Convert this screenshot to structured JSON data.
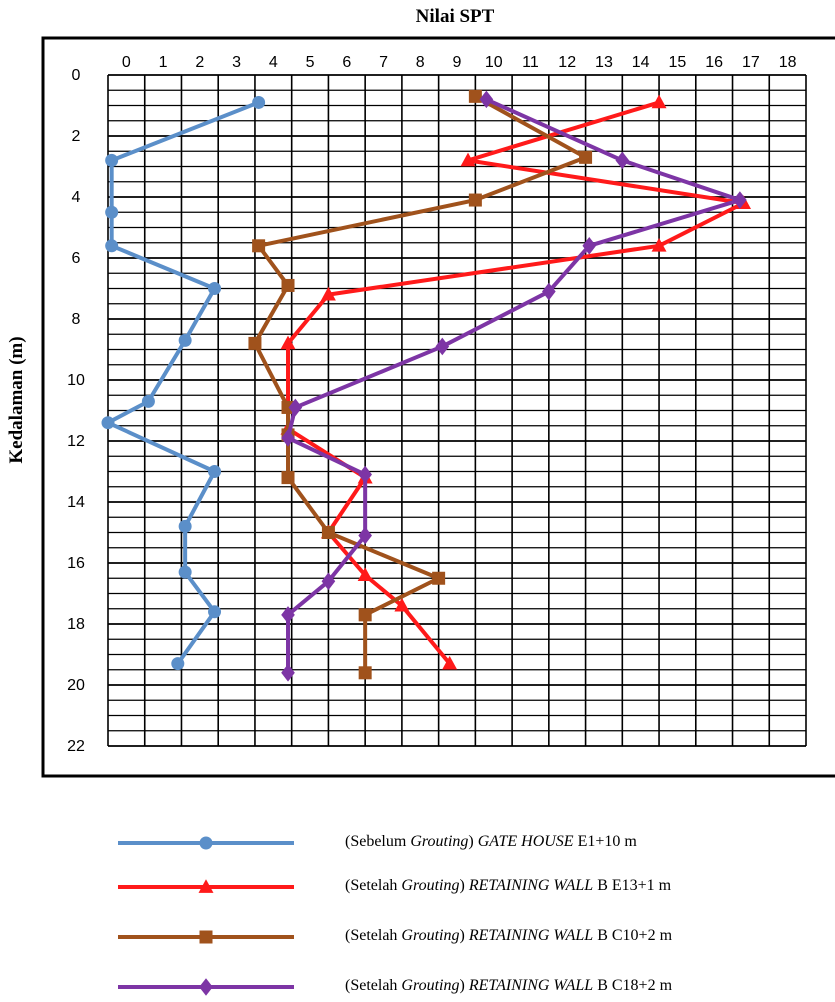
{
  "chart_data": {
    "type": "line",
    "title": "Nilai SPT",
    "xlabel": "",
    "ylabel": "Kedalaman (m)",
    "xlim": [
      0,
      19
    ],
    "ylim": [
      0,
      22
    ],
    "x_ticks": [
      0,
      1,
      2,
      3,
      4,
      5,
      6,
      7,
      8,
      9,
      10,
      11,
      12,
      13,
      14,
      15,
      16,
      17,
      18
    ],
    "y_ticks": [
      0,
      2,
      4,
      6,
      8,
      10,
      12,
      14,
      16,
      18,
      20,
      22
    ],
    "y_inverted": true,
    "x_axis_position": "top",
    "grid": true,
    "legend_position": "bottom",
    "series": [
      {
        "name": "(Sebelum Grouting) GATE HOUSE E1+10 m",
        "name_parts": [
          [
            "",
            "(Sebelum "
          ],
          [
            "it",
            "Grouting"
          ],
          [
            "",
            ") "
          ],
          [
            "it",
            "GATE HOUSE"
          ],
          [
            "",
            " E1+10 m"
          ]
        ],
        "color": "#5b8fc9",
        "marker": "circle",
        "points": [
          [
            4.1,
            0.9
          ],
          [
            0.1,
            2.8
          ],
          [
            0.1,
            4.5
          ],
          [
            0.1,
            5.6
          ],
          [
            2.9,
            7.0
          ],
          [
            2.1,
            8.7
          ],
          [
            1.1,
            10.7
          ],
          [
            0.0,
            11.4
          ],
          [
            2.9,
            13.0
          ],
          [
            2.1,
            14.8
          ],
          [
            2.1,
            16.3
          ],
          [
            2.9,
            17.6
          ],
          [
            1.9,
            19.3
          ]
        ]
      },
      {
        "name": "(Setelah Grouting) RETAINING WALL B E13+1 m",
        "name_parts": [
          [
            "",
            "(Setelah "
          ],
          [
            "it",
            "Grouting"
          ],
          [
            "",
            ") "
          ],
          [
            "it",
            "RETAINING WALL"
          ],
          [
            "",
            " B E13+1 m"
          ]
        ],
        "color": "#ff1a1a",
        "marker": "triangle",
        "points": [
          [
            15.0,
            0.9
          ],
          [
            9.8,
            2.8
          ],
          [
            17.3,
            4.2
          ],
          [
            15.0,
            5.6
          ],
          [
            6.0,
            7.2
          ],
          [
            4.9,
            8.8
          ],
          [
            4.9,
            11.6
          ],
          [
            7.0,
            13.2
          ],
          [
            6.0,
            15.0
          ],
          [
            7.0,
            16.4
          ],
          [
            8.0,
            17.4
          ],
          [
            9.3,
            19.3
          ]
        ]
      },
      {
        "name": "(Setelah Grouting) RETAINING WALL B C10+2 m",
        "name_parts": [
          [
            "",
            "(Setelah "
          ],
          [
            "it",
            "Grouting"
          ],
          [
            "",
            ") "
          ],
          [
            "it",
            "RETAINING WALL"
          ],
          [
            "",
            " B C10+2 m"
          ]
        ],
        "color": "#a0521c",
        "marker": "square",
        "points": [
          [
            10.0,
            0.7
          ],
          [
            13.0,
            2.7
          ],
          [
            10.0,
            4.1
          ],
          [
            4.1,
            5.6
          ],
          [
            4.9,
            6.9
          ],
          [
            4.0,
            8.8
          ],
          [
            4.9,
            10.9
          ],
          [
            4.9,
            11.8
          ],
          [
            4.9,
            13.2
          ],
          [
            6.0,
            15.0
          ],
          [
            9.0,
            16.5
          ],
          [
            7.0,
            17.7
          ],
          [
            7.0,
            19.6
          ]
        ]
      },
      {
        "name": "(Setelah Grouting) RETAINING WALL B C18+2 m",
        "name_parts": [
          [
            "",
            "(Setelah "
          ],
          [
            "it",
            "Grouting"
          ],
          [
            "",
            ") "
          ],
          [
            "it",
            "RETAINING WALL"
          ],
          [
            "",
            " B C18+2 m"
          ]
        ],
        "color": "#7d35a5",
        "marker": "diamond",
        "points": [
          [
            10.3,
            0.8
          ],
          [
            14.0,
            2.8
          ],
          [
            17.2,
            4.1
          ],
          [
            13.1,
            5.6
          ],
          [
            12.0,
            7.1
          ],
          [
            9.1,
            8.9
          ],
          [
            5.1,
            10.9
          ],
          [
            4.9,
            11.9
          ],
          [
            7.0,
            13.1
          ],
          [
            7.0,
            15.1
          ],
          [
            6.0,
            16.6
          ],
          [
            4.9,
            17.7
          ],
          [
            4.9,
            19.6
          ]
        ]
      }
    ]
  }
}
